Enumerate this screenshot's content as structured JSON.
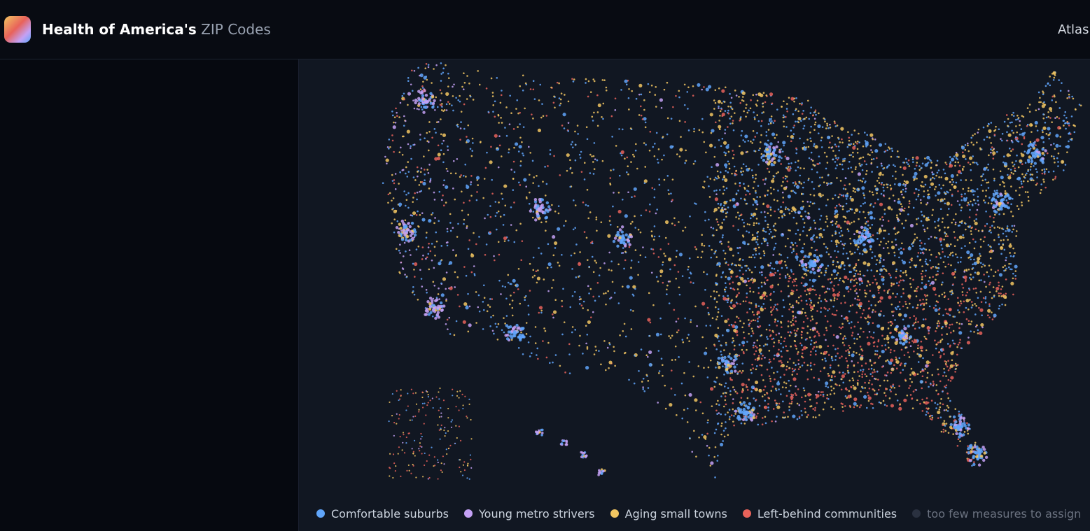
{
  "header": {
    "title_bold": "Health of America's",
    "title_light": "ZIP Codes",
    "nav": "Atlas"
  },
  "legend": [
    {
      "label": "Comfortable suburbs",
      "color": "#60a5fa"
    },
    {
      "label": "Young metro strivers",
      "color": "#c4a1f5"
    },
    {
      "label": "Aging small towns",
      "color": "#f2c661"
    },
    {
      "label": "Left-behind communities",
      "color": "#e8625a"
    },
    {
      "label": "too few measures to assign",
      "color": "#2a3140"
    }
  ]
}
